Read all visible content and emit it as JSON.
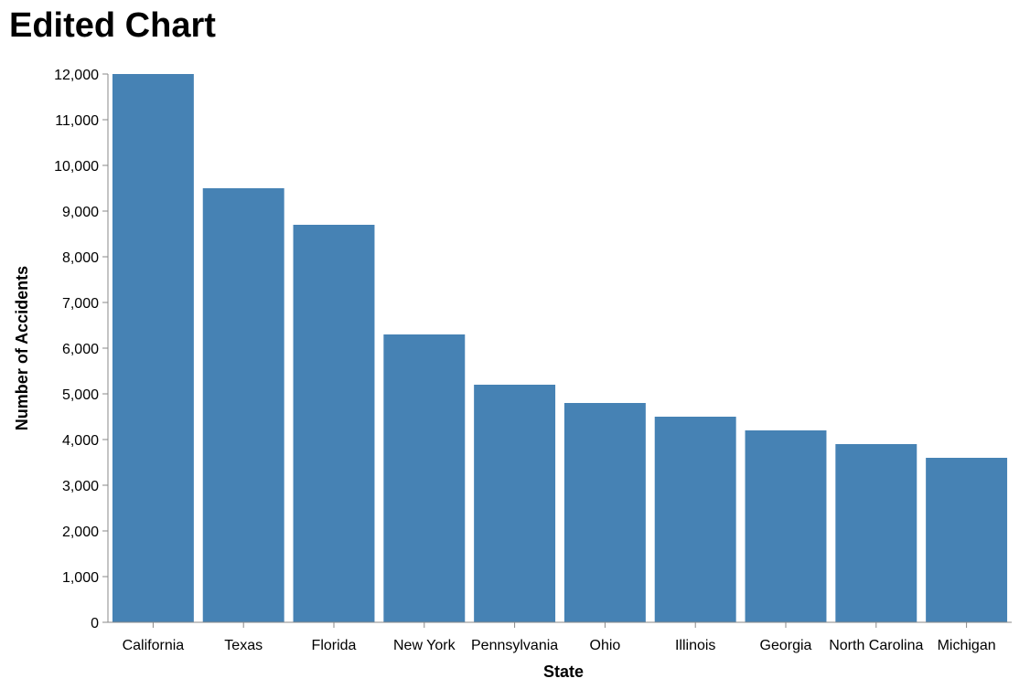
{
  "chart_data": {
    "type": "bar",
    "title": "Edited Chart",
    "xlabel": "State",
    "ylabel": "Number of Accidents",
    "categories": [
      "California",
      "Texas",
      "Florida",
      "New York",
      "Pennsylvania",
      "Ohio",
      "Illinois",
      "Georgia",
      "North Carolina",
      "Michigan"
    ],
    "values": [
      12000,
      9500,
      8700,
      6300,
      5200,
      4800,
      4500,
      4200,
      3900,
      3600
    ],
    "ylim": [
      0,
      12000
    ],
    "yticks": [
      0,
      1000,
      2000,
      3000,
      4000,
      5000,
      6000,
      7000,
      8000,
      9000,
      10000,
      11000,
      12000
    ],
    "ytick_labels": [
      "0",
      "1,000",
      "2,000",
      "3,000",
      "4,000",
      "5,000",
      "6,000",
      "7,000",
      "8,000",
      "9,000",
      "10,000",
      "11,000",
      "12,000"
    ],
    "grid": false,
    "legend": "none",
    "bar_color": "#4682b4",
    "axis_color": "#888888"
  }
}
